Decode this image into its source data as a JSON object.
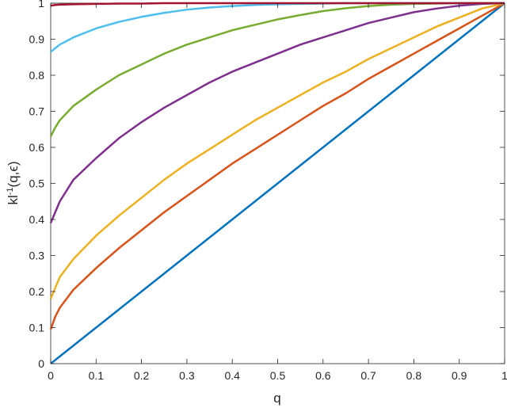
{
  "chart_data": {
    "type": "line",
    "title": "",
    "xlabel": "q",
    "ylabel": {
      "base": "kl",
      "sup": "-1",
      "args": "(q,ϵ)"
    },
    "xlim": [
      0,
      1
    ],
    "ylim": [
      0,
      1
    ],
    "grid": false,
    "x_ticks": [
      "0",
      "0.1",
      "0.2",
      "0.3",
      "0.4",
      "0.5",
      "0.6",
      "0.7",
      "0.8",
      "0.9",
      "1"
    ],
    "y_ticks": [
      "0",
      "0.1",
      "0.2",
      "0.3",
      "0.4",
      "0.5",
      "0.6",
      "0.7",
      "0.8",
      "0.9",
      "1"
    ],
    "x": [
      0,
      0.01,
      0.02,
      0.05,
      0.1,
      0.15,
      0.2,
      0.25,
      0.3,
      0.35,
      0.4,
      0.45,
      0.5,
      0.55,
      0.6,
      0.65,
      0.7,
      0.75,
      0.8,
      0.85,
      0.9,
      0.95,
      1
    ],
    "series": [
      {
        "color": "#0072BD",
        "values": [
          0,
          0.01,
          0.02,
          0.05,
          0.1,
          0.15,
          0.2,
          0.25,
          0.3,
          0.35,
          0.4,
          0.45,
          0.5,
          0.55,
          0.6,
          0.65,
          0.7,
          0.75,
          0.8,
          0.85,
          0.9,
          0.95,
          1
        ]
      },
      {
        "color": "#D95319",
        "values": [
          0.095,
          0.13,
          0.155,
          0.205,
          0.265,
          0.32,
          0.37,
          0.42,
          0.465,
          0.51,
          0.555,
          0.595,
          0.635,
          0.675,
          0.715,
          0.75,
          0.79,
          0.825,
          0.86,
          0.895,
          0.93,
          0.965,
          1
        ]
      },
      {
        "color": "#EDB120",
        "values": [
          0.18,
          0.21,
          0.24,
          0.29,
          0.355,
          0.41,
          0.46,
          0.51,
          0.555,
          0.595,
          0.635,
          0.675,
          0.71,
          0.745,
          0.78,
          0.81,
          0.845,
          0.875,
          0.905,
          0.935,
          0.96,
          0.985,
          1
        ]
      },
      {
        "color": "#7E2F8E",
        "values": [
          0.39,
          0.42,
          0.45,
          0.51,
          0.57,
          0.625,
          0.67,
          0.71,
          0.745,
          0.78,
          0.81,
          0.835,
          0.86,
          0.885,
          0.905,
          0.925,
          0.945,
          0.96,
          0.975,
          0.985,
          0.993,
          0.998,
          1
        ]
      },
      {
        "color": "#77AC30",
        "values": [
          0.63,
          0.655,
          0.675,
          0.715,
          0.76,
          0.8,
          0.83,
          0.86,
          0.885,
          0.905,
          0.925,
          0.94,
          0.955,
          0.967,
          0.978,
          0.986,
          0.992,
          0.996,
          0.998,
          0.999,
          1,
          1,
          1
        ]
      },
      {
        "color": "#4DBEEE",
        "values": [
          0.865,
          0.875,
          0.885,
          0.905,
          0.93,
          0.948,
          0.962,
          0.973,
          0.982,
          0.988,
          0.992,
          0.995,
          0.997,
          0.998,
          0.999,
          1,
          1,
          1,
          1,
          1,
          1,
          1,
          1
        ]
      },
      {
        "color": "#A2142F",
        "values": [
          0.993,
          0.995,
          0.996,
          0.997,
          0.998,
          0.999,
          0.999,
          1,
          1,
          1,
          1,
          1,
          1,
          1,
          1,
          1,
          1,
          1,
          1,
          1,
          1,
          1,
          1
        ]
      }
    ]
  }
}
